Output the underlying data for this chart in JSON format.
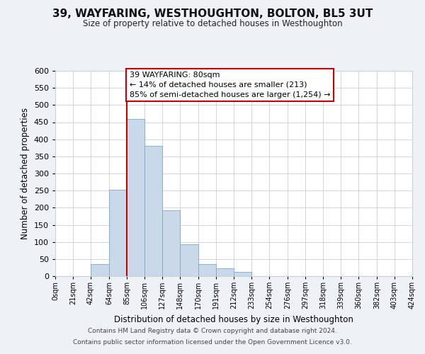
{
  "title": "39, WAYFARING, WESTHOUGHTON, BOLTON, BL5 3UT",
  "subtitle": "Size of property relative to detached houses in Westhoughton",
  "xlabel": "Distribution of detached houses by size in Westhoughton",
  "ylabel": "Number of detached properties",
  "bin_edges": [
    0,
    21,
    42,
    64,
    85,
    106,
    127,
    148,
    170,
    191,
    212,
    233,
    254,
    276,
    297,
    318,
    339,
    360,
    382,
    403,
    424
  ],
  "bin_labels": [
    "0sqm",
    "21sqm",
    "42sqm",
    "64sqm",
    "85sqm",
    "106sqm",
    "127sqm",
    "148sqm",
    "170sqm",
    "191sqm",
    "212sqm",
    "233sqm",
    "254sqm",
    "276sqm",
    "297sqm",
    "318sqm",
    "339sqm",
    "360sqm",
    "382sqm",
    "403sqm",
    "424sqm"
  ],
  "counts": [
    0,
    0,
    35,
    253,
    460,
    380,
    192,
    93,
    35,
    22,
    12,
    0,
    0,
    0,
    0,
    0,
    0,
    0,
    0,
    0
  ],
  "bar_color": "#c9d9ea",
  "bar_edge_color": "#7aaac8",
  "vline_x": 85,
  "vline_color": "#cc0000",
  "ylim": [
    0,
    600
  ],
  "yticks": [
    0,
    50,
    100,
    150,
    200,
    250,
    300,
    350,
    400,
    450,
    500,
    550,
    600
  ],
  "annotation_title": "39 WAYFARING: 80sqm",
  "annotation_line1": "← 14% of detached houses are smaller (213)",
  "annotation_line2": "85% of semi-detached houses are larger (1,254) →",
  "annotation_box_color": "#ffffff",
  "annotation_box_edge_color": "#cc0000",
  "footer_line1": "Contains HM Land Registry data © Crown copyright and database right 2024.",
  "footer_line2": "Contains public sector information licensed under the Open Government Licence v3.0.",
  "background_color": "#eef2f7",
  "plot_background_color": "#ffffff",
  "grid_color": "#c8d0da"
}
